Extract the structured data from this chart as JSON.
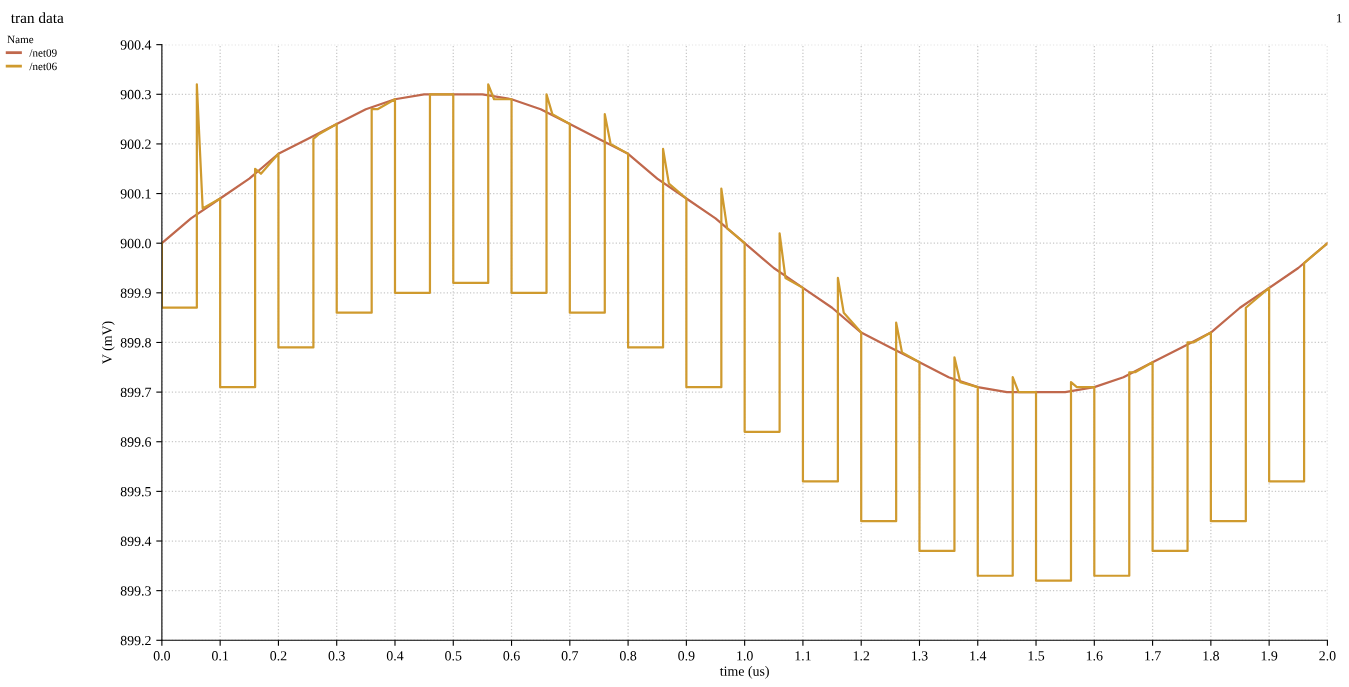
{
  "chart_data": {
    "type": "line",
    "title": "tran data",
    "legend_title": "Name",
    "xlabel": "time (us)",
    "ylabel": "V (mV)",
    "annotations": [
      "1"
    ],
    "xlim": [
      0,
      2
    ],
    "ylim": [
      899.2,
      900.4
    ],
    "xticks": [
      {
        "value": 0,
        "label": "0.0"
      },
      0.1,
      0.2,
      0.3,
      0.4,
      0.5,
      0.6,
      0.7,
      0.8,
      0.9,
      {
        "value": 1,
        "label": "1.0"
      },
      1.1,
      1.2,
      1.3,
      1.4,
      1.5,
      1.6,
      1.7,
      1.8,
      1.9,
      {
        "value": 2,
        "label": "2.0"
      }
    ],
    "yticks": [
      899.2,
      899.3,
      899.4,
      899.5,
      899.6,
      899.7,
      899.8,
      899.9,
      {
        "value": 900,
        "label": "900.0"
      },
      900.1,
      900.2,
      900.3,
      900.4
    ],
    "grid": true,
    "legend": "top left",
    "line_style": "solid",
    "marker": "none",
    "series": [
      {
        "name": "/net09",
        "color": "#c0684c",
        "x": [
          0,
          0.05,
          0.1,
          0.15,
          0.2,
          0.25,
          0.3,
          0.35,
          0.4,
          0.45,
          0.5,
          0.55,
          0.6,
          0.65,
          0.7,
          0.75,
          0.8,
          0.85,
          0.9,
          0.95,
          1.0,
          1.05,
          1.1,
          1.15,
          1.2,
          1.25,
          1.3,
          1.35,
          1.4,
          1.45,
          1.5,
          1.55,
          1.6,
          1.65,
          1.7,
          1.75,
          1.8,
          1.85,
          1.9,
          1.95,
          2.0
        ],
        "values": [
          900.0,
          900.05,
          900.09,
          900.13,
          900.18,
          900.21,
          900.24,
          900.27,
          900.29,
          900.3,
          900.3,
          900.3,
          900.29,
          900.27,
          900.24,
          900.21,
          900.18,
          900.13,
          900.09,
          900.05,
          900.0,
          899.95,
          899.91,
          899.87,
          899.82,
          899.79,
          899.76,
          899.73,
          899.71,
          899.7,
          899.7,
          899.7,
          899.71,
          899.73,
          899.76,
          899.79,
          899.82,
          899.87,
          899.91,
          899.95,
          900.0
        ]
      },
      {
        "name": "/net06",
        "color": "#cf9a2e",
        "x": [
          0,
          0,
          0.06,
          0.06,
          0.07,
          0.1,
          0.1,
          0.16,
          0.16,
          0.17,
          0.2,
          0.2,
          0.26,
          0.26,
          0.27,
          0.3,
          0.3,
          0.36,
          0.36,
          0.37,
          0.4,
          0.4,
          0.46,
          0.46,
          0.47,
          0.5,
          0.5,
          0.56,
          0.56,
          0.57,
          0.6,
          0.6,
          0.66,
          0.66,
          0.67,
          0.7,
          0.7,
          0.76,
          0.76,
          0.77,
          0.8,
          0.8,
          0.86,
          0.86,
          0.87,
          0.9,
          0.9,
          0.96,
          0.96,
          0.97,
          1.0,
          1.0,
          1.06,
          1.06,
          1.07,
          1.1,
          1.1,
          1.16,
          1.16,
          1.17,
          1.2,
          1.2,
          1.26,
          1.26,
          1.27,
          1.3,
          1.3,
          1.36,
          1.36,
          1.37,
          1.4,
          1.4,
          1.46,
          1.46,
          1.47,
          1.5,
          1.5,
          1.56,
          1.56,
          1.57,
          1.6,
          1.6,
          1.66,
          1.66,
          1.67,
          1.7,
          1.7,
          1.76,
          1.76,
          1.77,
          1.8,
          1.8,
          1.86,
          1.86,
          1.87,
          1.9,
          1.9,
          1.96,
          1.96,
          1.97,
          2.0
        ],
        "values": [
          900.0,
          899.87,
          899.87,
          900.32,
          900.07,
          900.09,
          899.71,
          899.71,
          900.15,
          900.14,
          900.18,
          899.79,
          899.79,
          900.21,
          900.22,
          900.24,
          899.86,
          899.86,
          900.27,
          900.27,
          900.29,
          899.9,
          899.9,
          900.3,
          900.3,
          900.3,
          899.92,
          899.92,
          900.32,
          900.29,
          900.29,
          899.9,
          899.9,
          900.3,
          900.26,
          900.24,
          899.86,
          899.86,
          900.26,
          900.2,
          900.18,
          899.79,
          899.79,
          900.19,
          900.12,
          900.09,
          899.71,
          899.71,
          900.11,
          900.03,
          900.0,
          899.62,
          899.62,
          900.02,
          899.93,
          899.91,
          899.52,
          899.52,
          899.93,
          899.86,
          899.82,
          899.44,
          899.44,
          899.84,
          899.78,
          899.76,
          899.38,
          899.38,
          899.77,
          899.72,
          899.71,
          899.33,
          899.33,
          899.73,
          899.7,
          899.7,
          899.32,
          899.32,
          899.72,
          899.71,
          899.71,
          899.33,
          899.33,
          899.74,
          899.74,
          899.76,
          899.38,
          899.38,
          899.8,
          899.8,
          899.82,
          899.44,
          899.44,
          899.87,
          899.88,
          899.91,
          899.52,
          899.52,
          899.96,
          899.97,
          900.0
        ]
      }
    ]
  }
}
